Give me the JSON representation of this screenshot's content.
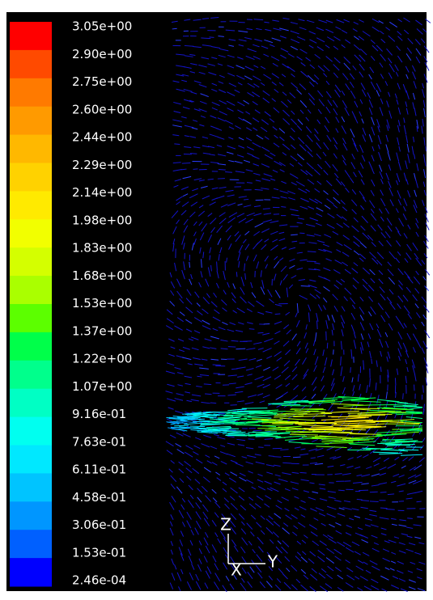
{
  "colorbar": {
    "labels": [
      "3.05e+00",
      "2.90e+00",
      "2.75e+00",
      "2.60e+00",
      "2.44e+00",
      "2.29e+00",
      "2.14e+00",
      "1.98e+00",
      "1.83e+00",
      "1.68e+00",
      "1.53e+00",
      "1.37e+00",
      "1.22e+00",
      "1.07e+00",
      "9.16e-01",
      "7.63e-01",
      "6.11e-01",
      "4.58e-01",
      "3.06e-01",
      "1.53e-01",
      "2.46e-04"
    ],
    "colors": [
      "#ff0000",
      "#ff4a00",
      "#ff7a00",
      "#ff9a00",
      "#ffb800",
      "#ffd200",
      "#ffea00",
      "#f2ff00",
      "#d4ff00",
      "#aaff00",
      "#5cff00",
      "#00ff4a",
      "#00ff8c",
      "#00ffc4",
      "#00fff0",
      "#00e8ff",
      "#00c4ff",
      "#0096ff",
      "#0060ff",
      "#0000ff"
    ]
  },
  "axes": {
    "z": "Z",
    "x": "X",
    "y": "Y"
  }
}
